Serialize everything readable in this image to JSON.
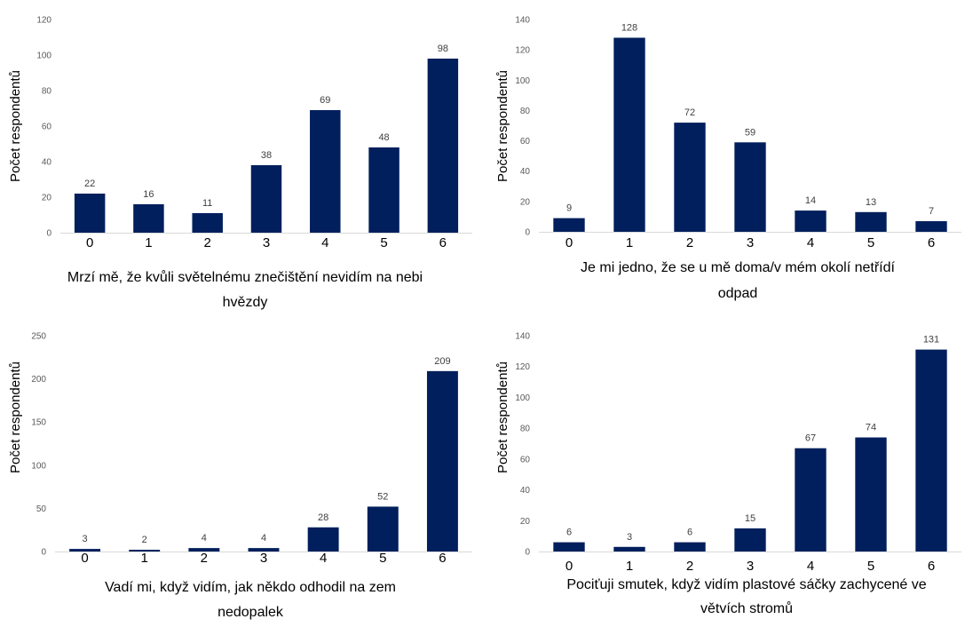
{
  "colors": {
    "bar": "#001f5c",
    "axis": "#d9d9d9",
    "text": "#000000"
  },
  "chart_data": [
    {
      "type": "bar",
      "categories": [
        "0",
        "1",
        "2",
        "3",
        "4",
        "5",
        "6"
      ],
      "values": [
        22,
        16,
        11,
        38,
        69,
        48,
        98
      ],
      "ylabel": "Počet respondentů",
      "xlabel_lines": [
        "Mrzí mě, že kvůli světelnému znečištění nevidím na nebi",
        "hvězdy"
      ],
      "ylim": [
        0,
        120
      ],
      "yticks": [
        "0",
        "20",
        "40",
        "60",
        "80",
        "100",
        "120"
      ],
      "grid": false,
      "legend": "none"
    },
    {
      "type": "bar",
      "categories": [
        "0",
        "1",
        "2",
        "3",
        "4",
        "5",
        "6"
      ],
      "values": [
        9,
        128,
        72,
        59,
        14,
        13,
        7
      ],
      "ylabel": "Počet respondentů",
      "xlabel_lines": [
        "Je mi jedno, že se u mě doma/v mém okolí netřídí",
        "odpad"
      ],
      "ylim": [
        0,
        140
      ],
      "yticks": [
        "0",
        "20",
        "40",
        "60",
        "80",
        "100",
        "120",
        "140"
      ],
      "grid": false,
      "legend": "none"
    },
    {
      "type": "bar",
      "categories": [
        "0",
        "1",
        "2",
        "3",
        "4",
        "5",
        "6"
      ],
      "values": [
        3,
        2,
        4,
        4,
        28,
        52,
        209
      ],
      "ylabel": "Počet respondentů",
      "xlabel_lines": [
        "Vadí mi, když vidím, jak někdo odhodil na zem",
        "nedopalek"
      ],
      "ylim": [
        0,
        250
      ],
      "yticks": [
        "0",
        "50",
        "100",
        "150",
        "200",
        "250"
      ],
      "grid": false,
      "legend": "none"
    },
    {
      "type": "bar",
      "categories": [
        "0",
        "1",
        "2",
        "3",
        "4",
        "5",
        "6"
      ],
      "values": [
        6,
        3,
        6,
        15,
        67,
        74,
        131
      ],
      "ylabel": "Počet respondentů",
      "xlabel_lines": [
        "Pociťuji smutek, když vidím plastové sáčky zachycené ve",
        "větvích stromů"
      ],
      "ylim": [
        0,
        140
      ],
      "yticks": [
        "0",
        "20",
        "40",
        "60",
        "80",
        "100",
        "120",
        "140"
      ],
      "grid": false,
      "legend": "none"
    }
  ]
}
